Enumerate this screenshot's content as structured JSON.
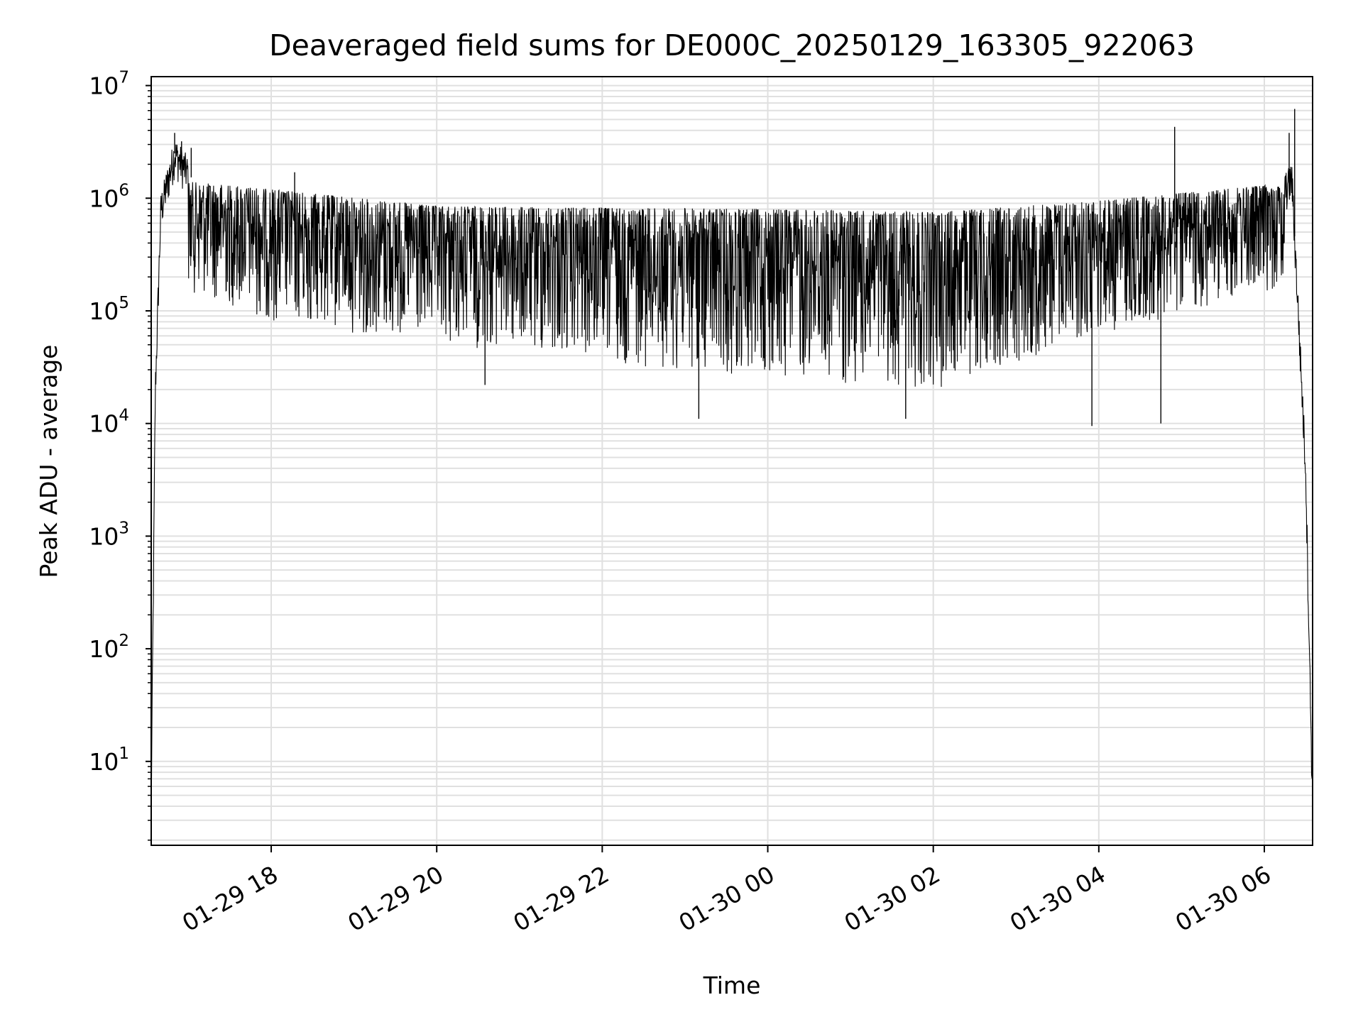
{
  "chart_data": {
    "type": "line",
    "title": "Deaveraged field sums for DE000C_20250129_163305_922063",
    "xlabel": "Time",
    "ylabel": "Peak ADU - average",
    "yscale": "log",
    "ylim": [
      1.8,
      12000000
    ],
    "xlim": [
      "2025-01-29 16:33",
      "2025-01-30 06:35"
    ],
    "grid": true,
    "line_color": "#000000",
    "grid_color": "#e0e0e0",
    "x_ticks": [
      {
        "value": "2025-01-29 18:00",
        "label": "01-29 18"
      },
      {
        "value": "2025-01-29 20:00",
        "label": "01-29 20"
      },
      {
        "value": "2025-01-29 22:00",
        "label": "01-29 22"
      },
      {
        "value": "2025-01-30 00:00",
        "label": "01-30 00"
      },
      {
        "value": "2025-01-30 02:00",
        "label": "01-30 02"
      },
      {
        "value": "2025-01-30 04:00",
        "label": "01-30 04"
      },
      {
        "value": "2025-01-30 06:00",
        "label": "01-30 06"
      }
    ],
    "y_ticks": [
      {
        "value": 10,
        "base": "10",
        "exp": "1"
      },
      {
        "value": 100,
        "base": "10",
        "exp": "2"
      },
      {
        "value": 1000,
        "base": "10",
        "exp": "3"
      },
      {
        "value": 10000,
        "base": "10",
        "exp": "4"
      },
      {
        "value": 100000,
        "base": "10",
        "exp": "5"
      },
      {
        "value": 1000000,
        "base": "10",
        "exp": "6"
      },
      {
        "value": 10000000,
        "base": "10",
        "exp": "7"
      }
    ],
    "series": [
      {
        "envelope_points": [
          {
            "x": "2025-01-29 16:33",
            "y": 4
          },
          {
            "x": "2025-01-29 16:36",
            "y": 20000
          },
          {
            "x": "2025-01-29 16:40",
            "y": 800000
          },
          {
            "x": "2025-01-29 16:50",
            "y": 2500000
          },
          {
            "x": "2025-01-29 17:15",
            "y": 900000
          },
          {
            "x": "2025-01-29 18:00",
            "y": 500000
          },
          {
            "x": "2025-01-29 20:00",
            "y": 350000
          },
          {
            "x": "2025-01-29 22:00",
            "y": 300000
          },
          {
            "x": "2025-01-30 00:00",
            "y": 250000
          },
          {
            "x": "2025-01-30 02:00",
            "y": 220000
          },
          {
            "x": "2025-01-30 04:00",
            "y": 400000
          },
          {
            "x": "2025-01-30 06:00",
            "y": 600000
          },
          {
            "x": "2025-01-30 06:20",
            "y": 1500000
          },
          {
            "x": "2025-01-30 06:30",
            "y": 4000
          },
          {
            "x": "2025-01-30 06:35",
            "y": 4
          }
        ],
        "upper_band": [
          {
            "x": "2025-01-29 17:00",
            "y": 1400000
          },
          {
            "x": "2025-01-29 18:00",
            "y": 1200000
          },
          {
            "x": "2025-01-29 20:00",
            "y": 850000
          },
          {
            "x": "2025-01-29 22:00",
            "y": 820000
          },
          {
            "x": "2025-01-30 00:00",
            "y": 800000
          },
          {
            "x": "2025-01-30 02:00",
            "y": 750000
          },
          {
            "x": "2025-01-30 04:00",
            "y": 950000
          },
          {
            "x": "2025-01-30 06:00",
            "y": 1300000
          }
        ],
        "lower_band": [
          {
            "x": "2025-01-29 17:00",
            "y": 150000
          },
          {
            "x": "2025-01-29 18:00",
            "y": 80000
          },
          {
            "x": "2025-01-29 20:00",
            "y": 50000
          },
          {
            "x": "2025-01-29 22:00",
            "y": 35000
          },
          {
            "x": "2025-01-30 00:00",
            "y": 25000
          },
          {
            "x": "2025-01-30 02:00",
            "y": 20000
          },
          {
            "x": "2025-01-30 04:00",
            "y": 60000
          },
          {
            "x": "2025-01-30 06:00",
            "y": 150000
          }
        ],
        "spikes": [
          {
            "x": "2025-01-29 16:50",
            "y": 3800000
          },
          {
            "x": "2025-01-29 16:55",
            "y": 3200000
          },
          {
            "x": "2025-01-29 17:02",
            "y": 2800000
          },
          {
            "x": "2025-01-29 18:17",
            "y": 1700000
          },
          {
            "x": "2025-01-29 20:35",
            "y": 22000
          },
          {
            "x": "2025-01-29 23:10",
            "y": 11000
          },
          {
            "x": "2025-01-30 01:40",
            "y": 11000
          },
          {
            "x": "2025-01-30 03:55",
            "y": 9500
          },
          {
            "x": "2025-01-30 04:55",
            "y": 4300000
          },
          {
            "x": "2025-01-30 04:45",
            "y": 10000
          },
          {
            "x": "2025-01-30 06:22",
            "y": 6200000
          },
          {
            "x": "2025-01-30 06:18",
            "y": 3800000
          }
        ]
      }
    ]
  }
}
